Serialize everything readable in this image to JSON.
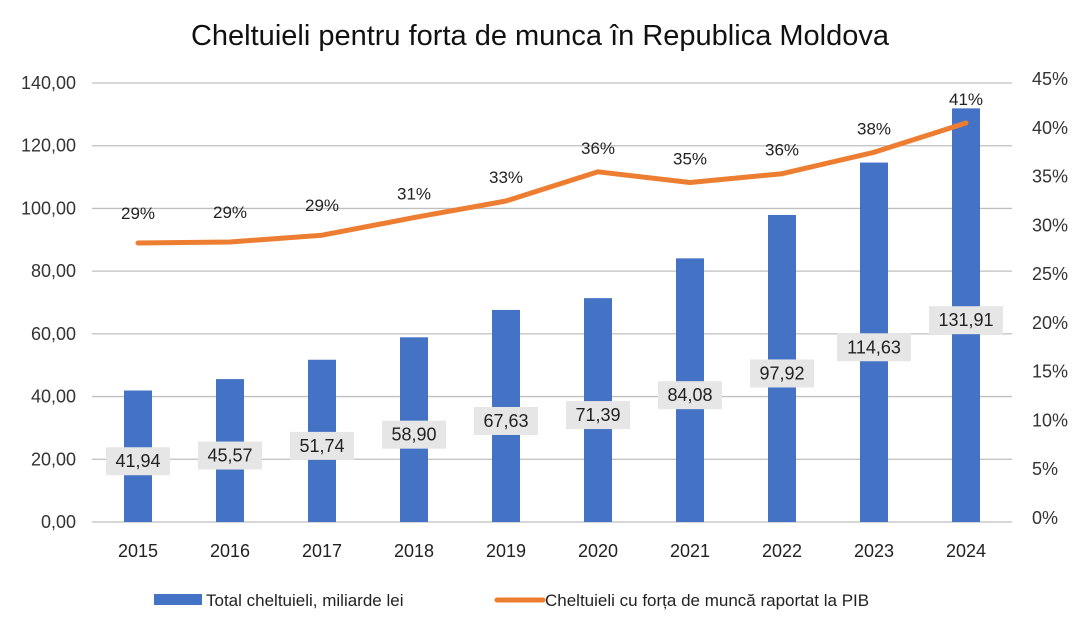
{
  "chart_data": {
    "type": "bar+line",
    "title": "Cheltuieli pentru forta de munca în Republica Moldova",
    "categories": [
      "2015",
      "2016",
      "2017",
      "2018",
      "2019",
      "2020",
      "2021",
      "2022",
      "2023",
      "2024"
    ],
    "series": [
      {
        "name": "Total cheltuieli, miliarde lei",
        "type": "bar",
        "axis": "left",
        "color": "#4472C4",
        "values": [
          41.94,
          45.57,
          51.74,
          58.9,
          67.63,
          71.39,
          84.08,
          97.92,
          114.63,
          131.91
        ],
        "labels": [
          "41,94",
          "45,57",
          "51,74",
          "58,90",
          "67,63",
          "71,39",
          "84,08",
          "97,92",
          "114,63",
          "131,91"
        ]
      },
      {
        "name": "Cheltuieli cu forța de muncă raportat la PIB",
        "type": "line",
        "axis": "right",
        "color": "#ED7D31",
        "values": [
          28.6,
          28.7,
          29.4,
          31.2,
          32.9,
          35.9,
          34.8,
          35.7,
          37.9,
          40.9
        ],
        "labels": [
          "29%",
          "29%",
          "29%",
          "31%",
          "33%",
          "36%",
          "35%",
          "36%",
          "38%",
          "41%"
        ]
      }
    ],
    "left_axis": {
      "range": [
        0,
        140
      ],
      "ticks": [
        0,
        20,
        40,
        60,
        80,
        100,
        120,
        140
      ],
      "tick_labels": [
        "0,00",
        "20,00",
        "40,00",
        "60,00",
        "80,00",
        "100,00",
        "120,00",
        "140,00"
      ]
    },
    "right_axis": {
      "range": [
        0,
        45
      ],
      "ticks": [
        0,
        5,
        10,
        15,
        20,
        25,
        30,
        35,
        40,
        45
      ],
      "tick_labels": [
        "0%",
        "5%",
        "10%",
        "15%",
        "20%",
        "25%",
        "30%",
        "35%",
        "40%",
        "45%"
      ]
    },
    "xlabel": "",
    "ylabel": "",
    "grid": true,
    "legend_position": "bottom"
  }
}
